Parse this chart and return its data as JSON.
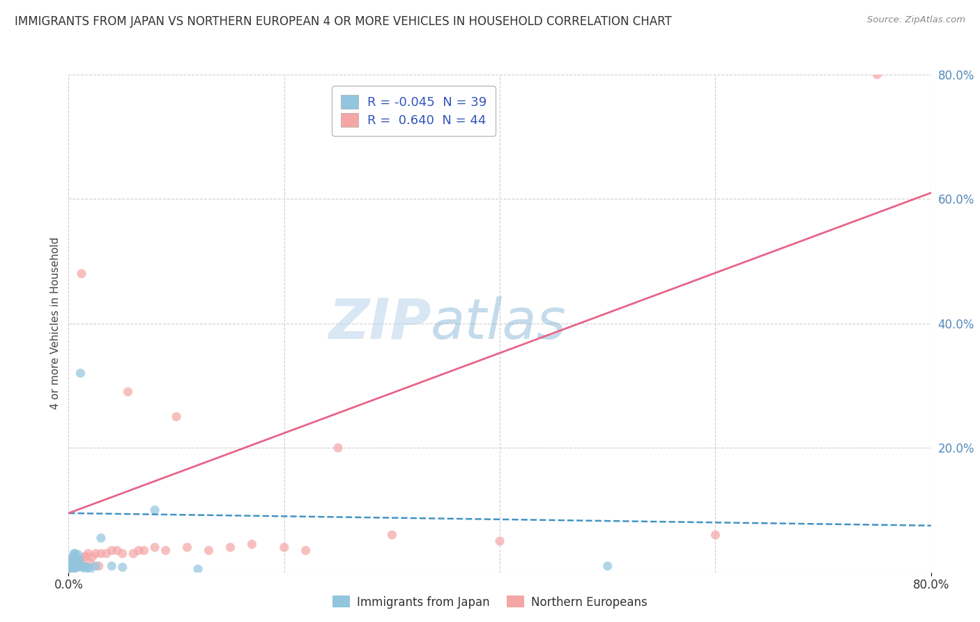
{
  "title": "IMMIGRANTS FROM JAPAN VS NORTHERN EUROPEAN 4 OR MORE VEHICLES IN HOUSEHOLD CORRELATION CHART",
  "source": "Source: ZipAtlas.com",
  "ylabel": "4 or more Vehicles in Household",
  "xlim": [
    0.0,
    0.8
  ],
  "ylim": [
    0.0,
    0.8
  ],
  "japan_R": -0.045,
  "japan_N": 39,
  "northern_R": 0.64,
  "northern_N": 44,
  "japan_color": "#92c5de",
  "northern_color": "#f4a6a6",
  "japan_line_color": "#4393c3",
  "northern_line_color": "#e8648a",
  "watermark_zip": "ZIP",
  "watermark_atlas": "atlas",
  "japan_points_x": [
    0.001,
    0.001,
    0.002,
    0.002,
    0.002,
    0.003,
    0.003,
    0.003,
    0.004,
    0.004,
    0.004,
    0.005,
    0.005,
    0.005,
    0.006,
    0.006,
    0.006,
    0.007,
    0.007,
    0.008,
    0.008,
    0.009,
    0.009,
    0.01,
    0.01,
    0.011,
    0.012,
    0.013,
    0.014,
    0.016,
    0.018,
    0.02,
    0.025,
    0.03,
    0.04,
    0.05,
    0.08,
    0.12,
    0.5
  ],
  "japan_points_y": [
    0.02,
    0.008,
    0.01,
    0.005,
    0.003,
    0.015,
    0.008,
    0.005,
    0.025,
    0.01,
    0.008,
    0.03,
    0.012,
    0.005,
    0.02,
    0.03,
    0.008,
    0.025,
    0.01,
    0.015,
    0.008,
    0.028,
    0.01,
    0.02,
    0.01,
    0.32,
    0.01,
    0.008,
    0.01,
    0.005,
    0.008,
    0.005,
    0.01,
    0.055,
    0.01,
    0.008,
    0.1,
    0.005,
    0.01
  ],
  "northern_points_x": [
    0.001,
    0.002,
    0.003,
    0.004,
    0.005,
    0.006,
    0.007,
    0.008,
    0.009,
    0.01,
    0.011,
    0.012,
    0.013,
    0.014,
    0.015,
    0.016,
    0.018,
    0.02,
    0.022,
    0.025,
    0.028,
    0.03,
    0.035,
    0.04,
    0.045,
    0.05,
    0.055,
    0.06,
    0.065,
    0.07,
    0.08,
    0.09,
    0.1,
    0.11,
    0.13,
    0.15,
    0.17,
    0.2,
    0.22,
    0.25,
    0.3,
    0.4,
    0.6,
    0.75
  ],
  "northern_points_y": [
    0.005,
    0.01,
    0.01,
    0.02,
    0.015,
    0.008,
    0.012,
    0.01,
    0.015,
    0.02,
    0.012,
    0.48,
    0.01,
    0.01,
    0.025,
    0.025,
    0.03,
    0.015,
    0.025,
    0.03,
    0.01,
    0.03,
    0.03,
    0.035,
    0.035,
    0.03,
    0.29,
    0.03,
    0.035,
    0.035,
    0.04,
    0.035,
    0.25,
    0.04,
    0.035,
    0.04,
    0.045,
    0.04,
    0.035,
    0.2,
    0.06,
    0.05,
    0.06,
    0.8
  ],
  "japan_trend_x": [
    0.0,
    0.8
  ],
  "japan_trend_y": [
    0.095,
    0.075
  ],
  "northern_trend_x": [
    0.0,
    0.8
  ],
  "northern_trend_y": [
    0.095,
    0.61
  ]
}
